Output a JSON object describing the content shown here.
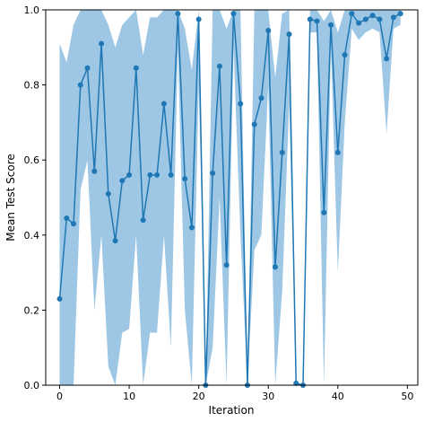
{
  "chart_data": {
    "type": "line",
    "title": "",
    "xlabel": "Iteration",
    "ylabel": "Mean Test Score",
    "xlim": [
      -2,
      51.5
    ],
    "ylim": [
      0,
      1.0
    ],
    "xticks": [
      0,
      10,
      20,
      30,
      40,
      50
    ],
    "yticks": [
      0.0,
      0.2,
      0.4,
      0.6,
      0.8,
      1.0
    ],
    "xtick_labels": [
      "0",
      "10",
      "20",
      "30",
      "40",
      "50"
    ],
    "ytick_labels": [
      "0.0",
      "0.2",
      "0.4",
      "0.6",
      "0.8",
      "1.0"
    ],
    "grid": false,
    "line_color": "#1f77b4",
    "band_color": "#8cbde0",
    "series": [
      {
        "x": [
          0,
          1,
          2,
          3,
          4,
          5,
          6,
          7,
          8,
          9,
          10,
          11,
          12,
          13,
          14,
          15,
          16,
          17,
          18,
          19,
          20,
          21,
          22,
          23,
          24,
          25,
          26,
          27,
          28,
          29,
          30,
          31,
          32,
          33,
          34,
          35,
          36,
          37,
          38,
          39,
          40,
          41,
          42,
          43,
          44,
          45,
          46,
          47,
          48,
          49
        ],
        "mean": [
          0.23,
          0.445,
          0.43,
          0.8,
          0.845,
          0.57,
          0.91,
          0.51,
          0.385,
          0.545,
          0.56,
          0.845,
          0.44,
          0.56,
          0.56,
          0.75,
          0.56,
          0.99,
          0.55,
          0.42,
          0.975,
          0.0,
          0.565,
          0.85,
          0.32,
          0.99,
          0.75,
          0.0,
          0.695,
          0.765,
          0.945,
          0.315,
          0.62,
          0.935,
          0.005,
          0.0,
          0.975,
          0.97,
          0.46,
          0.96,
          0.62,
          0.88,
          0.99,
          0.965,
          0.975,
          0.985,
          0.975,
          0.87,
          0.98,
          0.99
        ],
        "lower": [
          0.0,
          0.0,
          0.0,
          0.52,
          0.6,
          0.2,
          0.4,
          0.05,
          0.0,
          0.14,
          0.15,
          0.4,
          0.0,
          0.14,
          0.14,
          0.4,
          0.1,
          0.9,
          0.2,
          0.0,
          0.8,
          0.0,
          0.1,
          0.5,
          0.0,
          0.9,
          0.4,
          0.0,
          0.36,
          0.4,
          0.8,
          0.0,
          0.25,
          0.75,
          0.0,
          0.0,
          0.94,
          0.94,
          0.0,
          0.9,
          0.3,
          0.7,
          0.95,
          0.92,
          0.94,
          0.95,
          0.94,
          0.67,
          0.95,
          0.96
        ],
        "upper": [
          0.91,
          0.86,
          0.96,
          1.0,
          1.0,
          1.0,
          1.0,
          0.96,
          0.9,
          0.96,
          0.98,
          1.0,
          0.88,
          0.98,
          0.98,
          1.0,
          1.0,
          1.0,
          0.95,
          0.84,
          1.0,
          0.0,
          1.0,
          1.0,
          0.95,
          1.0,
          1.0,
          0.0,
          1.0,
          1.0,
          1.0,
          0.82,
          0.99,
          1.0,
          0.0,
          0.0,
          1.0,
          1.0,
          0.97,
          1.0,
          0.94,
          1.0,
          1.0,
          1.0,
          1.0,
          1.0,
          1.0,
          1.0,
          1.0,
          1.0
        ]
      }
    ]
  }
}
